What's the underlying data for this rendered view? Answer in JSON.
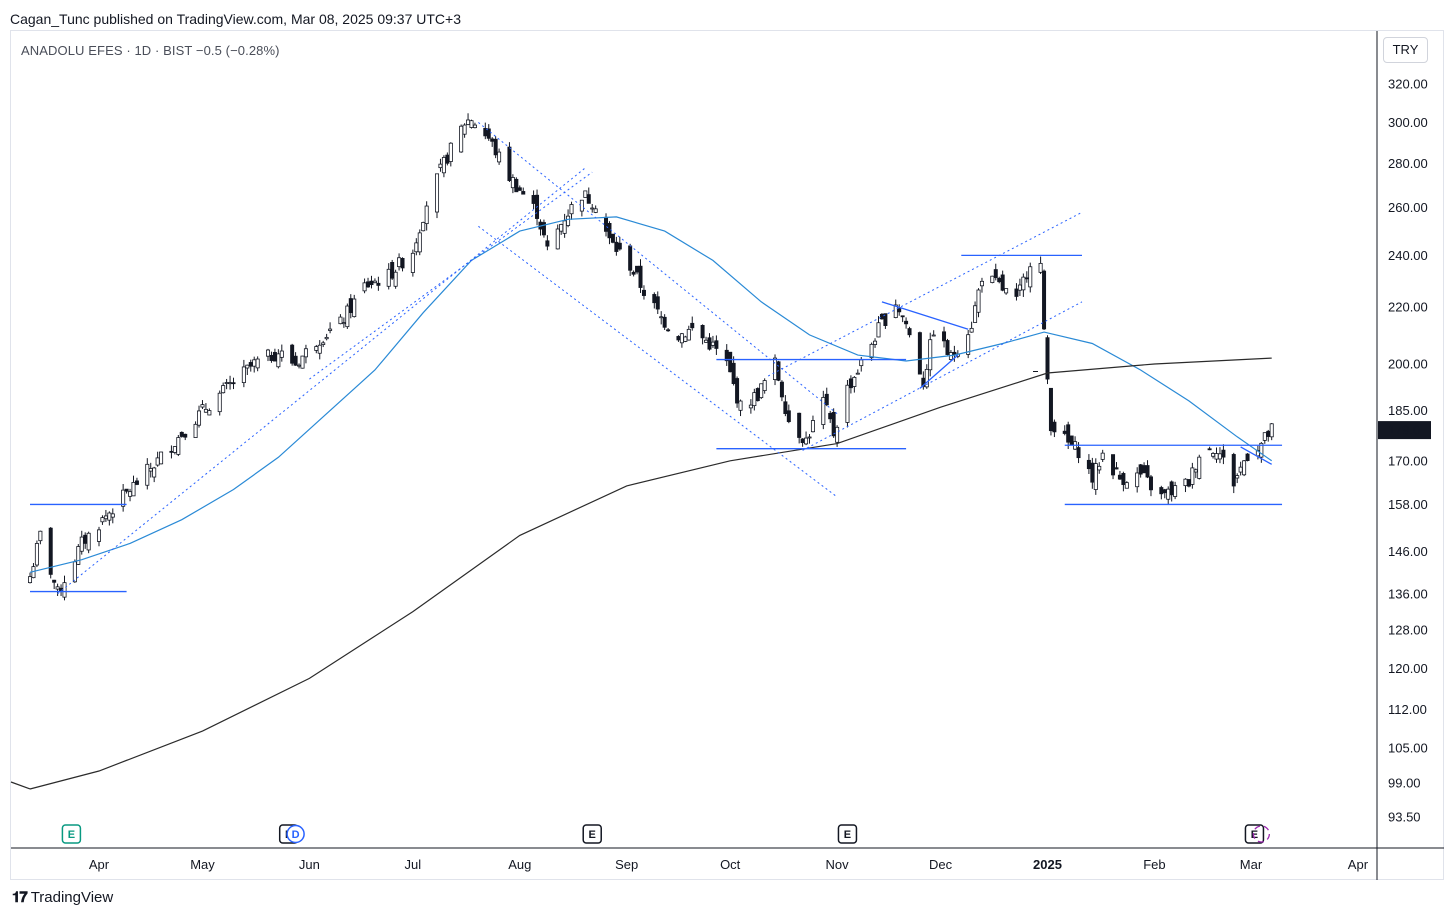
{
  "header": {
    "attribution": "Cagan_Tunc published on TradingView.com, Mar 08, 2025 09:37 UTC+3"
  },
  "symbol": {
    "line": "ANADOLU EFES · 1D · BIST  −0.5 (−0.28%)"
  },
  "currency": "TRY",
  "footer": {
    "logo_mark": "𝟏𝟕",
    "brand": "TradingView"
  },
  "colors": {
    "up_candle": "#ffffff",
    "down_candle": "#131722",
    "ma_blue": "#2a8ad6",
    "ma_black": "#2b2b2b",
    "drawing_blue": "#2962ff",
    "last_price_bg": "#131722"
  },
  "chart_data": {
    "type": "candlestick",
    "title": "ANADOLU EFES · 1D · BIST",
    "y_scale": "log",
    "ylim": [
      90,
      335
    ],
    "y_ticks": [
      320.0,
      300.0,
      280.0,
      260.0,
      240.0,
      220.0,
      200.0,
      185.0,
      170.0,
      158.0,
      146.0,
      136.0,
      128.0,
      120.0,
      112.0,
      105.0,
      99.0,
      93.5
    ],
    "y_tick_labels": [
      "320.00",
      "300.00",
      "280.00",
      "260.00",
      "240.00",
      "220.00",
      "200.00",
      "185.00",
      "170.00",
      "158.00",
      "146.00",
      "136.00",
      "128.00",
      "120.00",
      "112.00",
      "105.00",
      "99.00",
      "93.50"
    ],
    "x_ticks": [
      {
        "label": "Apr",
        "date": "2024-04-01"
      },
      {
        "label": "May",
        "date": "2024-05-01"
      },
      {
        "label": "Jun",
        "date": "2024-06-01"
      },
      {
        "label": "Jul",
        "date": "2024-07-01"
      },
      {
        "label": "Aug",
        "date": "2024-08-01"
      },
      {
        "label": "Sep",
        "date": "2024-09-01"
      },
      {
        "label": "Oct",
        "date": "2024-10-01"
      },
      {
        "label": "Nov",
        "date": "2024-11-01"
      },
      {
        "label": "Dec",
        "date": "2024-12-01"
      },
      {
        "label": "2025",
        "date": "2025-01-01",
        "bold": true
      },
      {
        "label": "Feb",
        "date": "2025-02-01"
      },
      {
        "label": "Mar",
        "date": "2025-03-01"
      },
      {
        "label": "Apr",
        "date": "2025-04-01"
      }
    ],
    "last_price": {
      "label": "179.0",
      "value": 179.0
    },
    "close_path": [
      [
        "2024-03-12",
        140
      ],
      [
        "2024-03-15",
        150
      ],
      [
        "2024-03-20",
        136
      ],
      [
        "2024-03-27",
        148
      ],
      [
        "2024-04-03",
        155
      ],
      [
        "2024-04-10",
        162
      ],
      [
        "2024-04-18",
        170
      ],
      [
        "2024-04-25",
        178
      ],
      [
        "2024-05-02",
        186
      ],
      [
        "2024-05-10",
        194
      ],
      [
        "2024-05-16",
        200
      ],
      [
        "2024-05-23",
        204
      ],
      [
        "2024-05-28",
        200
      ],
      [
        "2024-06-03",
        208
      ],
      [
        "2024-06-10",
        214
      ],
      [
        "2024-06-17",
        228
      ],
      [
        "2024-06-24",
        232
      ],
      [
        "2024-07-01",
        242
      ],
      [
        "2024-07-05",
        262
      ],
      [
        "2024-07-10",
        280
      ],
      [
        "2024-07-16",
        300
      ],
      [
        "2024-07-18",
        302
      ],
      [
        "2024-07-23",
        292
      ],
      [
        "2024-07-29",
        274
      ],
      [
        "2024-08-02",
        266
      ],
      [
        "2024-08-06",
        258
      ],
      [
        "2024-08-09",
        242
      ],
      [
        "2024-08-14",
        256
      ],
      [
        "2024-08-19",
        266
      ],
      [
        "2024-08-23",
        262
      ],
      [
        "2024-08-27",
        246
      ],
      [
        "2024-09-02",
        236
      ],
      [
        "2024-09-06",
        226
      ],
      [
        "2024-09-11",
        216
      ],
      [
        "2024-09-16",
        210
      ],
      [
        "2024-09-20",
        212
      ],
      [
        "2024-09-26",
        206
      ],
      [
        "2024-09-30",
        200
      ],
      [
        "2024-10-04",
        186
      ],
      [
        "2024-10-09",
        190
      ],
      [
        "2024-10-14",
        200
      ],
      [
        "2024-10-18",
        182
      ],
      [
        "2024-10-23",
        176
      ],
      [
        "2024-10-28",
        188
      ],
      [
        "2024-10-31",
        178
      ],
      [
        "2024-11-04",
        192
      ],
      [
        "2024-11-08",
        200
      ],
      [
        "2024-11-13",
        212
      ],
      [
        "2024-11-18",
        222
      ],
      [
        "2024-11-21",
        214
      ],
      [
        "2024-11-26",
        194
      ],
      [
        "2024-11-29",
        212
      ],
      [
        "2024-12-04",
        202
      ],
      [
        "2024-12-10",
        214
      ],
      [
        "2024-12-13",
        232
      ],
      [
        "2024-12-18",
        228
      ],
      [
        "2024-12-23",
        222
      ],
      [
        "2024-12-27",
        238
      ],
      [
        "2024-12-30",
        236
      ],
      [
        "2024-12-31",
        210
      ],
      [
        "2025-01-02",
        181
      ],
      [
        "2025-01-07",
        175
      ],
      [
        "2025-01-10",
        173
      ],
      [
        "2025-01-14",
        165
      ],
      [
        "2025-01-17",
        172
      ],
      [
        "2025-01-22",
        165
      ],
      [
        "2025-01-28",
        166
      ],
      [
        "2025-02-03",
        160
      ],
      [
        "2025-02-07",
        162
      ],
      [
        "2025-02-11",
        164
      ],
      [
        "2025-02-14",
        172
      ],
      [
        "2025-02-19",
        174
      ],
      [
        "2025-02-24",
        164
      ],
      [
        "2025-02-28",
        172
      ],
      [
        "2025-03-04",
        175
      ],
      [
        "2025-03-07",
        179
      ]
    ],
    "series": [
      {
        "kind": "moving_average",
        "color": "#2a8ad6",
        "points": [
          [
            "2024-03-12",
            141
          ],
          [
            "2024-03-27",
            144
          ],
          [
            "2024-04-10",
            148
          ],
          [
            "2024-04-25",
            154
          ],
          [
            "2024-05-10",
            162
          ],
          [
            "2024-05-23",
            171
          ],
          [
            "2024-06-06",
            184
          ],
          [
            "2024-06-20",
            198
          ],
          [
            "2024-07-04",
            218
          ],
          [
            "2024-07-18",
            238
          ],
          [
            "2024-08-01",
            250
          ],
          [
            "2024-08-15",
            255
          ],
          [
            "2024-08-29",
            256
          ],
          [
            "2024-09-12",
            250
          ],
          [
            "2024-09-26",
            238
          ],
          [
            "2024-10-10",
            222
          ],
          [
            "2024-10-24",
            210
          ],
          [
            "2024-11-07",
            203
          ],
          [
            "2024-11-21",
            201
          ],
          [
            "2024-12-05",
            203
          ],
          [
            "2024-12-19",
            207
          ],
          [
            "2024-12-31",
            211
          ],
          [
            "2025-01-14",
            207
          ],
          [
            "2025-01-28",
            198
          ],
          [
            "2025-02-11",
            188
          ],
          [
            "2025-02-25",
            177
          ],
          [
            "2025-03-07",
            170
          ]
        ]
      },
      {
        "kind": "moving_average",
        "color": "#2b2b2b",
        "points": [
          [
            "2024-03-12",
            98
          ],
          [
            "2024-04-01",
            101
          ],
          [
            "2024-05-01",
            108
          ],
          [
            "2024-06-01",
            118
          ],
          [
            "2024-07-01",
            132
          ],
          [
            "2024-08-01",
            150
          ],
          [
            "2024-09-01",
            163
          ],
          [
            "2024-10-01",
            170
          ],
          [
            "2024-11-01",
            175
          ],
          [
            "2024-12-01",
            186
          ],
          [
            "2025-01-01",
            197
          ],
          [
            "2025-02-01",
            200
          ],
          [
            "2025-03-07",
            202
          ]
        ]
      }
    ],
    "drawings": [
      {
        "kind": "hline",
        "from": "2024-03-12",
        "to": "2024-04-09",
        "y": 158.0
      },
      {
        "kind": "hline",
        "from": "2024-03-12",
        "to": "2024-04-09",
        "y": 136.5
      },
      {
        "kind": "dotted",
        "from": [
          "2024-03-20",
          136
        ],
        "to": [
          "2024-08-20",
          278
        ]
      },
      {
        "kind": "dotted",
        "from": [
          "2024-06-01",
          195
        ],
        "to": [
          "2024-08-22",
          276
        ]
      },
      {
        "kind": "dotted",
        "from": [
          "2024-07-20",
          300
        ],
        "to": [
          "2024-11-01",
          184
        ]
      },
      {
        "kind": "dotted",
        "from": [
          "2024-07-20",
          252
        ],
        "to": [
          "2024-11-01",
          160
        ]
      },
      {
        "kind": "hline",
        "from": "2024-09-27",
        "to": "2024-11-21",
        "y": 201.5
      },
      {
        "kind": "hline",
        "from": "2024-09-27",
        "to": "2024-11-21",
        "y": 173.5
      },
      {
        "kind": "dotted",
        "from": [
          "2024-10-22",
          173
        ],
        "to": [
          "2025-01-11",
          222
        ]
      },
      {
        "kind": "dotted",
        "from": [
          "2024-10-12",
          196
        ],
        "to": [
          "2025-01-11",
          258
        ]
      },
      {
        "kind": "trend",
        "from": [
          "2024-11-14",
          222
        ],
        "to": [
          "2024-12-09",
          212
        ]
      },
      {
        "kind": "trend",
        "from": [
          "2024-11-25",
          192
        ],
        "to": [
          "2024-12-06",
          203
        ]
      },
      {
        "kind": "hline",
        "from": "2024-12-07",
        "to": "2025-01-11",
        "y": 240.0
      },
      {
        "kind": "hline",
        "from": "2025-01-06",
        "to": "2025-03-10",
        "y": 174.5
      },
      {
        "kind": "hline",
        "from": "2025-01-06",
        "to": "2025-03-10",
        "y": 158.0
      },
      {
        "kind": "trend",
        "from": [
          "2025-02-26",
          174
        ],
        "to": [
          "2025-03-07",
          169
        ]
      }
    ],
    "events": [
      {
        "label": "E",
        "date": "2024-03-24",
        "color": "#089981"
      },
      {
        "label": "E",
        "date": "2024-05-26",
        "color": "#131722"
      },
      {
        "label": "D",
        "date": "2024-05-28",
        "color": "#2962ff"
      },
      {
        "label": "E",
        "date": "2024-08-22",
        "color": "#131722"
      },
      {
        "label": "E",
        "date": "2024-11-04",
        "color": "#131722"
      },
      {
        "label": "E",
        "date": "2025-03-02",
        "color": "#131722"
      }
    ]
  }
}
